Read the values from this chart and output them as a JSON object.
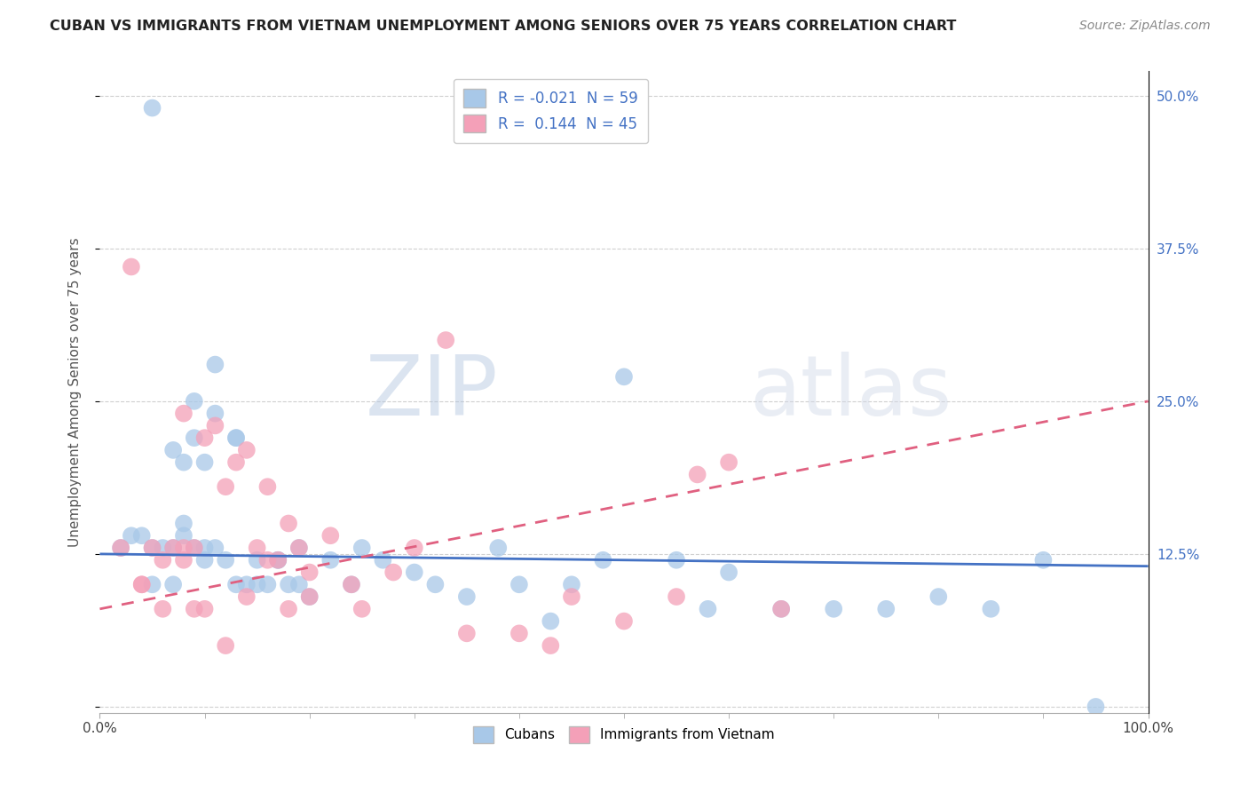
{
  "title": "CUBAN VS IMMIGRANTS FROM VIETNAM UNEMPLOYMENT AMONG SENIORS OVER 75 YEARS CORRELATION CHART",
  "source": "Source: ZipAtlas.com",
  "ylabel": "Unemployment Among Seniors over 75 years",
  "xlim": [
    0.0,
    100.0
  ],
  "ylim": [
    -0.005,
    0.52
  ],
  "yticks": [
    0.0,
    0.125,
    0.25,
    0.375,
    0.5
  ],
  "legend_r_cubans": "-0.021",
  "legend_n_cubans": "59",
  "legend_r_vietnam": "0.144",
  "legend_n_vietnam": "45",
  "color_cubans": "#a8c8e8",
  "color_vietnam": "#f4a0b8",
  "trendline_cubans": "#4472c4",
  "trendline_vietnam": "#e06080",
  "background_color": "#ffffff",
  "grid_color": "#d0d0d0",
  "cubans_x": [
    2,
    3,
    4,
    5,
    5,
    6,
    7,
    7,
    8,
    8,
    8,
    9,
    9,
    10,
    10,
    10,
    11,
    11,
    12,
    13,
    13,
    14,
    15,
    16,
    17,
    18,
    19,
    20,
    22,
    24,
    25,
    27,
    30,
    32,
    35,
    38,
    40,
    43,
    45,
    48,
    50,
    55,
    58,
    60,
    65,
    70,
    75,
    80,
    85,
    90,
    95,
    5,
    7,
    9,
    11,
    13,
    15,
    17,
    19
  ],
  "cubans_y": [
    0.13,
    0.14,
    0.14,
    0.13,
    0.1,
    0.13,
    0.13,
    0.21,
    0.14,
    0.15,
    0.2,
    0.13,
    0.22,
    0.13,
    0.12,
    0.2,
    0.13,
    0.24,
    0.12,
    0.1,
    0.22,
    0.1,
    0.12,
    0.1,
    0.12,
    0.1,
    0.1,
    0.09,
    0.12,
    0.1,
    0.13,
    0.12,
    0.11,
    0.1,
    0.09,
    0.13,
    0.1,
    0.07,
    0.1,
    0.12,
    0.27,
    0.12,
    0.08,
    0.11,
    0.08,
    0.08,
    0.08,
    0.09,
    0.08,
    0.12,
    0.0,
    0.49,
    0.1,
    0.25,
    0.28,
    0.22,
    0.1,
    0.12,
    0.13
  ],
  "vietnam_x": [
    2,
    3,
    4,
    5,
    6,
    7,
    8,
    8,
    9,
    9,
    10,
    11,
    12,
    13,
    14,
    15,
    16,
    17,
    18,
    19,
    20,
    22,
    24,
    25,
    28,
    30,
    33,
    35,
    40,
    43,
    45,
    50,
    55,
    57,
    60,
    65,
    4,
    6,
    8,
    10,
    12,
    14,
    16,
    18,
    20
  ],
  "vietnam_y": [
    0.13,
    0.36,
    0.1,
    0.13,
    0.12,
    0.13,
    0.12,
    0.24,
    0.08,
    0.13,
    0.22,
    0.23,
    0.18,
    0.2,
    0.21,
    0.13,
    0.18,
    0.12,
    0.08,
    0.13,
    0.09,
    0.14,
    0.1,
    0.08,
    0.11,
    0.13,
    0.3,
    0.06,
    0.06,
    0.05,
    0.09,
    0.07,
    0.09,
    0.19,
    0.2,
    0.08,
    0.1,
    0.08,
    0.13,
    0.08,
    0.05,
    0.09,
    0.12,
    0.15,
    0.11
  ]
}
